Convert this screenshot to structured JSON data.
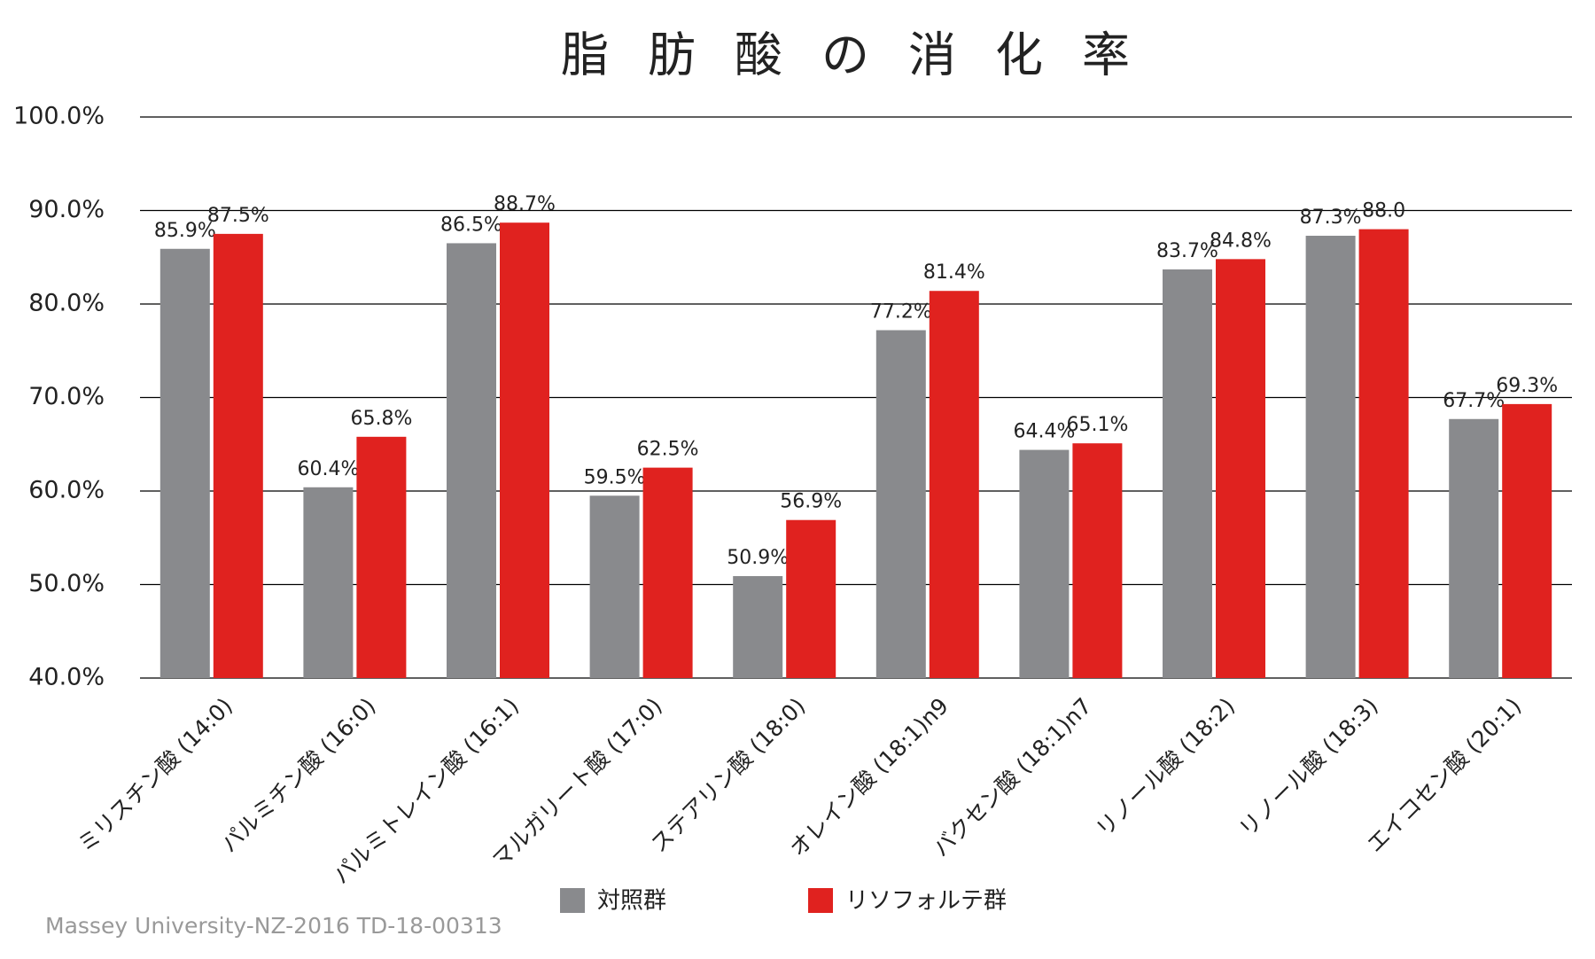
{
  "chart_data": {
    "type": "bar",
    "title": "脂肪酸の消化率",
    "categories": [
      "ミリスチン酸 (14:0)",
      "パルミチン酸 (16:0)",
      "パルミトレイン酸 (16:1)",
      "マルガリート酸 (17:0)",
      "ステアリン酸 (18:0)",
      "オレイン酸 (18:1)n9",
      "バクセン酸 (18:1)n7",
      "リノール酸 (18:2)",
      "リノール酸 (18:3)",
      "エイコセン酸 (20:1)"
    ],
    "series": [
      {
        "name": "対照群",
        "color": "#898a8d",
        "values": [
          85.9,
          60.4,
          86.5,
          59.5,
          50.9,
          77.2,
          64.4,
          83.7,
          87.3,
          67.7
        ],
        "value_labels": [
          "85.9%",
          "60.4%",
          "86.5%",
          "59.5%",
          "50.9%",
          "77.2%",
          "64.4%",
          "83.7%",
          "87.3%",
          "67.7%"
        ]
      },
      {
        "name": "リソフォルテ群",
        "color": "#e0221f",
        "values": [
          87.5,
          65.8,
          88.7,
          62.5,
          56.9,
          81.4,
          65.1,
          84.8,
          88.0,
          69.3
        ],
        "value_labels": [
          "87.5%",
          "65.8%",
          "88.7%",
          "62.5%",
          "56.9%",
          "81.4%",
          "65.1%",
          "84.8%",
          "88.0",
          "69.3%"
        ]
      }
    ],
    "ylim": [
      40,
      100
    ],
    "yticks": [
      {
        "value": 40,
        "label": "40.0%"
      },
      {
        "value": 50,
        "label": "50.0%"
      },
      {
        "value": 60,
        "label": "60.0%"
      },
      {
        "value": 70,
        "label": "70.0%"
      },
      {
        "value": 80,
        "label": "80.0%"
      },
      {
        "value": 90,
        "label": "90.0%"
      },
      {
        "value": 100,
        "label": "100.0%"
      }
    ],
    "grid": true,
    "source": "Massey University-NZ-2016 TD-18-00313"
  }
}
